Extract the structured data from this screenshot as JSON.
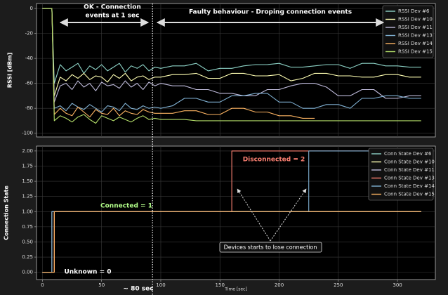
{
  "chart_data": [
    {
      "type": "line",
      "ylabel": "RSSI [dBm]",
      "xlim": [
        -5,
        332
      ],
      "ylim": [
        -103,
        4
      ],
      "yticks": [
        0,
        -20,
        -40,
        -60,
        -80,
        -100
      ],
      "grid": true,
      "legend": "upper right",
      "vline_x": 93,
      "annotations": [
        "OK - Connection",
        "events at 1 sec",
        "Faulty behaviour - Droping connection events"
      ],
      "x": [
        0,
        4,
        8,
        10,
        15,
        20,
        25,
        30,
        35,
        40,
        45,
        50,
        55,
        60,
        65,
        70,
        75,
        80,
        85,
        90,
        95,
        100,
        110,
        120,
        130,
        140,
        150,
        160,
        170,
        180,
        190,
        200,
        210,
        220,
        230,
        240,
        250,
        260,
        270,
        280,
        290,
        300,
        310,
        320
      ],
      "series": [
        {
          "name": "RSSI Dev #6",
          "color": "#8dd3c7",
          "values": [
            0,
            0,
            0,
            -60,
            -45,
            -50,
            -47,
            -44,
            -52,
            -46,
            -49,
            -45,
            -50,
            -47,
            -44,
            -51,
            -46,
            -48,
            -45,
            -50,
            -47,
            -48,
            -46,
            -46,
            -44,
            -50,
            -48,
            -48,
            -46,
            -45,
            -45,
            -44,
            -47,
            -47,
            -46,
            -45,
            -45,
            -48,
            -44,
            -44,
            -46,
            -46,
            -47,
            -47
          ]
        },
        {
          "name": "RSSI Dev #10",
          "color": "#ffffb3",
          "values": [
            0,
            0,
            0,
            -70,
            -55,
            -58,
            -53,
            -56,
            -52,
            -57,
            -54,
            -55,
            -59,
            -53,
            -56,
            -52,
            -58,
            -55,
            -54,
            -57,
            -55,
            -55,
            -53,
            -53,
            -52,
            -56,
            -56,
            -52,
            -52,
            -54,
            -54,
            -53,
            -58,
            -56,
            -52,
            -52,
            -54,
            -54,
            -55,
            -55,
            -53,
            -53,
            -55,
            -55
          ]
        },
        {
          "name": "RSSI Dev #11",
          "color": "#bebada",
          "values": [
            0,
            0,
            0,
            -75,
            -62,
            -60,
            -65,
            -58,
            -63,
            -60,
            -66,
            -59,
            -62,
            -61,
            -64,
            -58,
            -63,
            -60,
            -65,
            -59,
            -62,
            -60,
            -62,
            -62,
            -65,
            -65,
            -68,
            -68,
            -70,
            -70,
            -65,
            -65,
            -62,
            -60,
            -60,
            -63,
            -70,
            -70,
            -65,
            -65,
            -72,
            -72,
            -70,
            -70
          ]
        },
        {
          "name": "RSSI Dev #13",
          "color": "#80b1d3",
          "values": [
            0,
            0,
            0,
            -80,
            -78,
            -82,
            -76,
            -79,
            -81,
            -77,
            -80,
            -83,
            -78,
            -79,
            -82,
            -76,
            -80,
            -81,
            -78,
            -80,
            -79,
            -80,
            -78,
            -72,
            -72,
            -75,
            -75,
            -70,
            -70,
            -68,
            -68,
            -75,
            -75,
            -80,
            -80,
            -77,
            -77,
            -80,
            -72,
            -72,
            -70,
            -70,
            -72,
            -72
          ]
        },
        {
          "name": "RSSI Dev #14",
          "color": "#fdb462",
          "values": [
            0,
            0,
            0,
            -85,
            -80,
            -84,
            -86,
            -79,
            -83,
            -87,
            -81,
            -84,
            -85,
            -80,
            -86,
            -82,
            -84,
            -85,
            -81,
            -83,
            -84,
            -84,
            -84,
            -82,
            -82,
            -85,
            -85,
            -80,
            -80,
            -83,
            -83,
            -86,
            -86,
            -88,
            -88,
            null,
            null,
            null,
            null,
            null,
            null,
            null,
            null,
            null
          ]
        },
        {
          "name": "RSSI Dev #15",
          "color": "#b3de69",
          "values": [
            0,
            0,
            0,
            -90,
            -86,
            -88,
            -91,
            -87,
            -85,
            -89,
            -92,
            -86,
            -88,
            -90,
            -87,
            -89,
            -91,
            -88,
            -86,
            -89,
            -88,
            -89,
            -89,
            -89,
            -90,
            -90,
            -90,
            -90,
            -90,
            -90,
            -90,
            -90,
            -90,
            -90,
            -90,
            -90,
            -90,
            -90,
            -90,
            -90,
            -90,
            -90,
            -90,
            -90
          ]
        }
      ]
    },
    {
      "type": "line",
      "ylabel": "Connection State",
      "xlabel": "Time [sec]",
      "xlim": [
        -5,
        332
      ],
      "ylim": [
        -0.12,
        2.08
      ],
      "xticks": [
        0,
        50,
        100,
        150,
        200,
        250,
        300
      ],
      "yticks": [
        {
          "value": 0,
          "label": "0.00"
        },
        {
          "value": 0.25,
          "label": "0.25"
        },
        {
          "value": 0.5,
          "label": "0.50"
        },
        {
          "value": 0.75,
          "label": "0.75"
        },
        {
          "value": 1,
          "label": "1.00"
        },
        {
          "value": 1.25,
          "label": "1.25"
        },
        {
          "value": 1.5,
          "label": "1.50"
        },
        {
          "value": 1.75,
          "label": "1.75"
        },
        {
          "value": 2,
          "label": "2.00"
        }
      ],
      "grid": true,
      "legend": "upper right",
      "annotations": [
        "Disconnected = 2",
        "Connected = 1",
        "Unknown = 0",
        "Devices starts to lose connection",
        "~ 80 sec"
      ],
      "x": [
        0,
        8,
        8,
        10,
        10,
        160,
        160,
        225,
        225,
        320
      ],
      "series": [
        {
          "name": "Conn State Dev #6",
          "color": "#8dd3c7",
          "values": [
            0,
            0,
            1,
            1,
            1,
            1,
            1,
            1,
            1,
            1
          ]
        },
        {
          "name": "Conn State Dev #10",
          "color": "#ffffb3",
          "values": [
            0,
            0,
            0,
            0,
            1,
            1,
            1,
            1,
            1,
            1
          ]
        },
        {
          "name": "Conn State Dev #11",
          "color": "#bebada",
          "values": [
            0,
            0,
            1,
            1,
            1,
            1,
            1,
            1,
            1,
            1
          ]
        },
        {
          "name": "Conn State Dev #13",
          "color": "#fb8072",
          "values": [
            0,
            0,
            0,
            0,
            1,
            1,
            2,
            2,
            2,
            2
          ]
        },
        {
          "name": "Conn State Dev #14",
          "color": "#80b1d3",
          "values": [
            0,
            0,
            1,
            1,
            1,
            1,
            1,
            1,
            2,
            2
          ]
        },
        {
          "name": "Conn State Dev #15",
          "color": "#fdb462",
          "values": [
            0,
            0,
            0,
            0,
            1,
            1,
            1,
            1,
            1,
            1
          ]
        }
      ]
    }
  ]
}
